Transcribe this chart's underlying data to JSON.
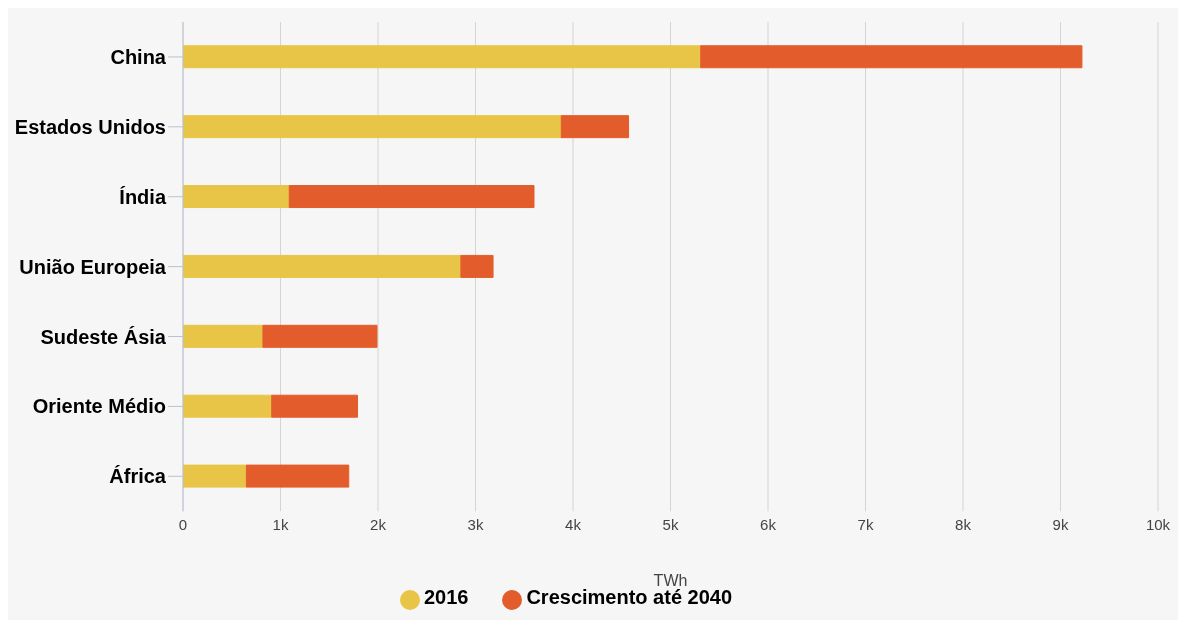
{
  "chart_data": {
    "type": "bar",
    "orientation": "horizontal",
    "stacked": true,
    "xlabel": "TWh",
    "categories": [
      "China",
      "Estados Unidos",
      "Índia",
      "União Europeia",
      "Sudeste Ásia",
      "Oriente Médio",
      "África"
    ],
    "series": [
      {
        "name": "2016",
        "color": "#e8c547",
        "values": [
          5310,
          3880,
          1090,
          2850,
          820,
          910,
          650
        ]
      },
      {
        "name": "Crescimento até 2040",
        "color": "#e35d2c",
        "values": [
          3910,
          690,
          2510,
          330,
          1170,
          880,
          1050
        ]
      }
    ],
    "xlim": [
      0,
      10000
    ],
    "xticks": [
      0,
      {
        "value": 1000,
        "label": "1k"
      },
      {
        "value": 2000,
        "label": "2k"
      },
      {
        "value": 3000,
        "label": "3k"
      },
      {
        "value": 4000,
        "label": "4k"
      },
      {
        "value": 5000,
        "label": "5k"
      },
      {
        "value": 6000,
        "label": "6k"
      },
      {
        "value": 7000,
        "label": "7k"
      },
      {
        "value": 8000,
        "label": "8k"
      },
      {
        "value": 9000,
        "label": "9k"
      },
      {
        "value": 10000,
        "label": "10k"
      }
    ],
    "grid": "x",
    "legend": "bottom"
  }
}
